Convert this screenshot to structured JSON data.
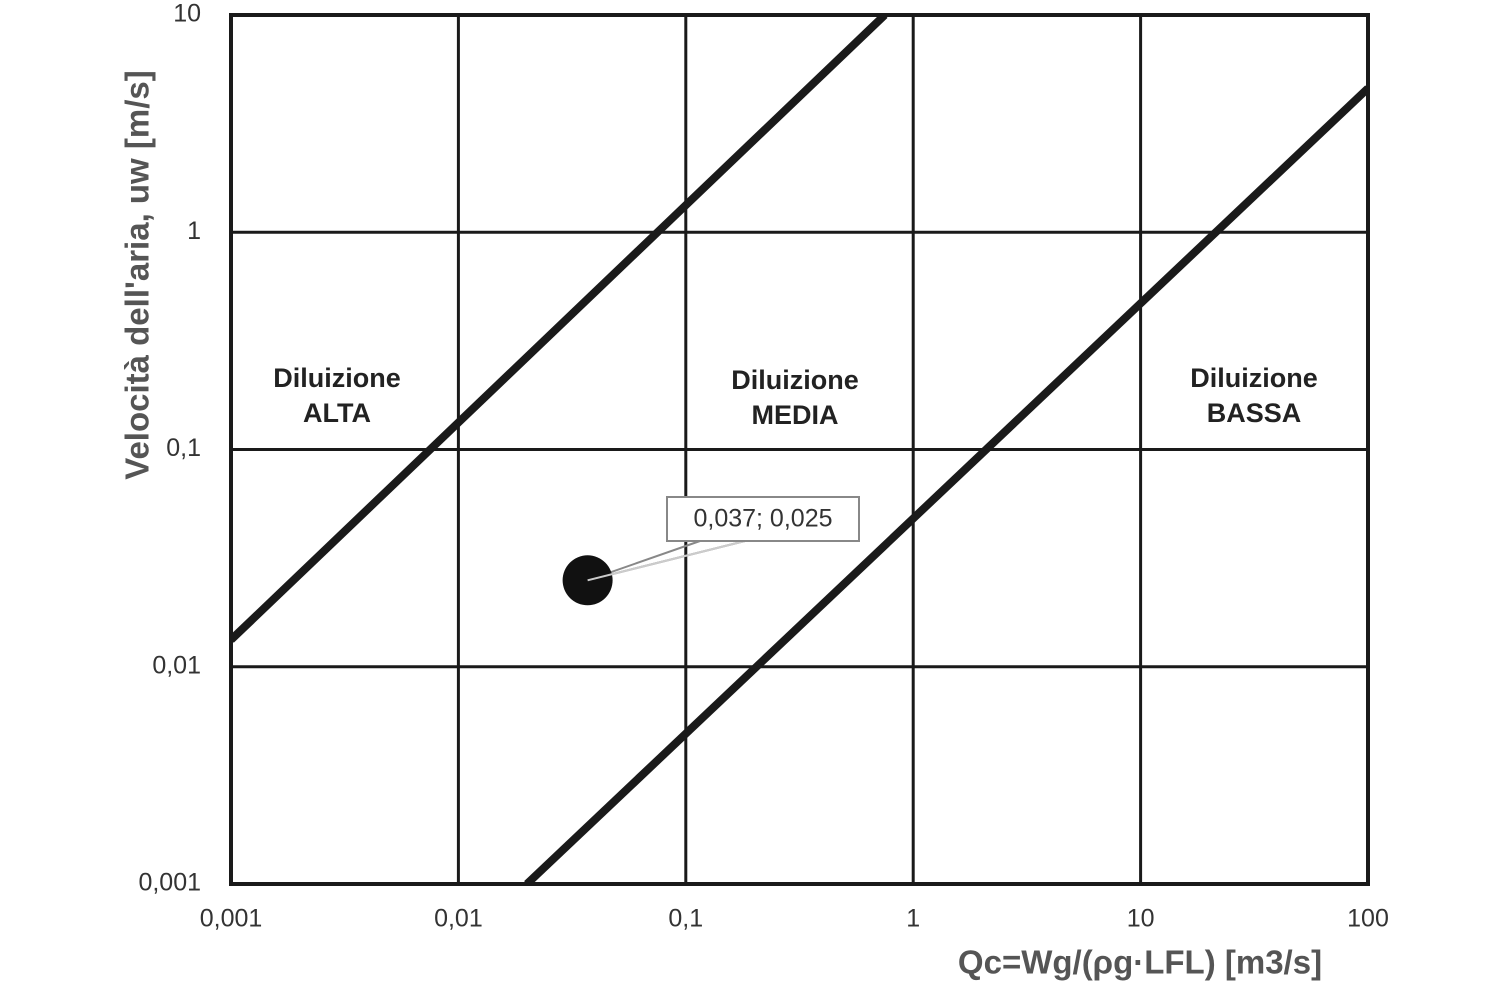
{
  "chart_data": {
    "type": "line",
    "xlabel": "Qc=Wg/(ρg·LFL) [m3/s]",
    "ylabel": "Velocità dell'aria, uw [m/s]",
    "xscale": "log",
    "yscale": "log",
    "grid": true,
    "xlim": [
      0.001,
      100
    ],
    "ylim": [
      0.001,
      10
    ],
    "xticks": [
      {
        "value": 0.001,
        "label": "0,001"
      },
      {
        "value": 0.01,
        "label": "0,01"
      },
      {
        "value": 0.1,
        "label": "0,1"
      },
      1,
      10,
      100
    ],
    "yticks": [
      {
        "value": 0.001,
        "label": "0,001"
      },
      {
        "value": 0.01,
        "label": "0,01"
      },
      {
        "value": 0.1,
        "label": "0,1"
      },
      1,
      10
    ],
    "series": [
      {
        "color": "#1a1a1a",
        "x": [
          0.001,
          0.75
        ],
        "values": [
          0.0133,
          10
        ]
      },
      {
        "color": "#1a1a1a",
        "x": [
          0.02,
          100
        ],
        "values": [
          0.001,
          4.6
        ]
      }
    ],
    "point": {
      "x": 0.037,
      "y": 0.025,
      "label": "0,037; 0,025",
      "color": "#111111"
    },
    "annotations": [
      {
        "text": [
          "Diluizione",
          "ALTA"
        ]
      },
      {
        "text": [
          "Diluizione",
          "MEDIA"
        ]
      },
      {
        "text": [
          "Diluizione",
          "BASSA"
        ]
      }
    ]
  }
}
